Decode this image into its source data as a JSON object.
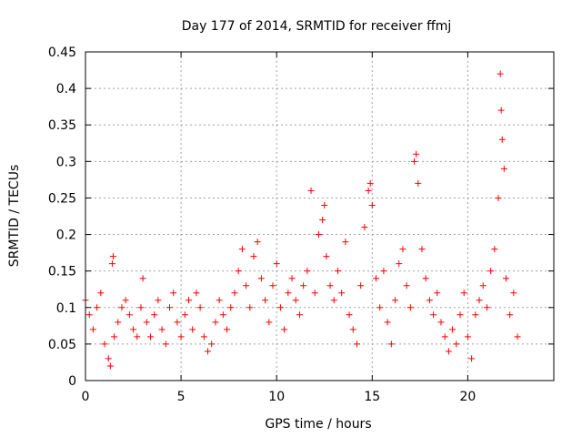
{
  "chart_data": {
    "type": "scatter",
    "title": "Day 177 of 2014, SRMTID for receiver ffmj",
    "xlabel": "GPS time / hours",
    "ylabel": "SRMTID / TECUs",
    "xlim": [
      0,
      24.5
    ],
    "ylim": [
      0,
      0.45
    ],
    "xticks": [
      0,
      5,
      10,
      15,
      20
    ],
    "xtick_labels": [
      "0",
      "5",
      "10",
      "15",
      "20"
    ],
    "yticks": [
      0,
      0.05,
      0.1,
      0.15,
      0.2,
      0.25,
      0.3,
      0.35,
      0.4,
      0.45
    ],
    "ytick_labels": [
      "0",
      "0.05",
      "0.1",
      "0.15",
      "0.2",
      "0.25",
      "0.3",
      "0.35",
      "0.4",
      "0.45"
    ],
    "grid": true,
    "marker": "+",
    "color": "#ff0000",
    "series": [
      {
        "name": "SRMTID",
        "points": [
          [
            0.0,
            0.11
          ],
          [
            0.2,
            0.09
          ],
          [
            0.4,
            0.07
          ],
          [
            0.6,
            0.1
          ],
          [
            0.8,
            0.12
          ],
          [
            1.0,
            0.05
          ],
          [
            1.2,
            0.03
          ],
          [
            1.3,
            0.02
          ],
          [
            1.4,
            0.16
          ],
          [
            1.45,
            0.17
          ],
          [
            1.5,
            0.06
          ],
          [
            1.7,
            0.08
          ],
          [
            1.9,
            0.1
          ],
          [
            2.1,
            0.11
          ],
          [
            2.3,
            0.09
          ],
          [
            2.5,
            0.07
          ],
          [
            2.7,
            0.06
          ],
          [
            2.9,
            0.1
          ],
          [
            3.0,
            0.14
          ],
          [
            3.2,
            0.08
          ],
          [
            3.4,
            0.06
          ],
          [
            3.6,
            0.09
          ],
          [
            3.8,
            0.11
          ],
          [
            4.0,
            0.07
          ],
          [
            4.2,
            0.05
          ],
          [
            4.4,
            0.1
          ],
          [
            4.6,
            0.12
          ],
          [
            4.8,
            0.08
          ],
          [
            5.0,
            0.06
          ],
          [
            5.2,
            0.09
          ],
          [
            5.4,
            0.11
          ],
          [
            5.6,
            0.07
          ],
          [
            5.8,
            0.12
          ],
          [
            6.0,
            0.1
          ],
          [
            6.2,
            0.06
          ],
          [
            6.4,
            0.04
          ],
          [
            6.6,
            0.05
          ],
          [
            6.8,
            0.08
          ],
          [
            7.0,
            0.11
          ],
          [
            7.2,
            0.09
          ],
          [
            7.4,
            0.07
          ],
          [
            7.6,
            0.1
          ],
          [
            7.8,
            0.12
          ],
          [
            8.0,
            0.15
          ],
          [
            8.2,
            0.18
          ],
          [
            8.4,
            0.13
          ],
          [
            8.6,
            0.1
          ],
          [
            8.8,
            0.17
          ],
          [
            9.0,
            0.19
          ],
          [
            9.2,
            0.14
          ],
          [
            9.4,
            0.11
          ],
          [
            9.6,
            0.08
          ],
          [
            9.8,
            0.13
          ],
          [
            10.0,
            0.16
          ],
          [
            10.2,
            0.1
          ],
          [
            10.4,
            0.07
          ],
          [
            10.6,
            0.12
          ],
          [
            10.8,
            0.14
          ],
          [
            11.0,
            0.11
          ],
          [
            11.2,
            0.09
          ],
          [
            11.4,
            0.13
          ],
          [
            11.6,
            0.15
          ],
          [
            11.8,
            0.26
          ],
          [
            12.0,
            0.12
          ],
          [
            12.2,
            0.2
          ],
          [
            12.4,
            0.22
          ],
          [
            12.5,
            0.24
          ],
          [
            12.6,
            0.17
          ],
          [
            12.8,
            0.13
          ],
          [
            13.0,
            0.11
          ],
          [
            13.2,
            0.15
          ],
          [
            13.4,
            0.12
          ],
          [
            13.6,
            0.19
          ],
          [
            13.8,
            0.09
          ],
          [
            14.0,
            0.07
          ],
          [
            14.2,
            0.05
          ],
          [
            14.4,
            0.13
          ],
          [
            14.6,
            0.21
          ],
          [
            14.8,
            0.26
          ],
          [
            14.9,
            0.27
          ],
          [
            15.0,
            0.24
          ],
          [
            15.2,
            0.14
          ],
          [
            15.4,
            0.1
          ],
          [
            15.6,
            0.15
          ],
          [
            15.8,
            0.08
          ],
          [
            16.0,
            0.05
          ],
          [
            16.2,
            0.11
          ],
          [
            16.4,
            0.16
          ],
          [
            16.6,
            0.18
          ],
          [
            16.8,
            0.13
          ],
          [
            17.0,
            0.1
          ],
          [
            17.2,
            0.3
          ],
          [
            17.3,
            0.31
          ],
          [
            17.4,
            0.27
          ],
          [
            17.6,
            0.18
          ],
          [
            17.8,
            0.14
          ],
          [
            18.0,
            0.11
          ],
          [
            18.2,
            0.09
          ],
          [
            18.4,
            0.12
          ],
          [
            18.6,
            0.08
          ],
          [
            18.8,
            0.06
          ],
          [
            19.0,
            0.04
          ],
          [
            19.2,
            0.07
          ],
          [
            19.4,
            0.05
          ],
          [
            19.6,
            0.09
          ],
          [
            19.8,
            0.12
          ],
          [
            20.0,
            0.06
          ],
          [
            20.2,
            0.03
          ],
          [
            20.4,
            0.09
          ],
          [
            20.6,
            0.11
          ],
          [
            20.8,
            0.13
          ],
          [
            21.0,
            0.1
          ],
          [
            21.2,
            0.15
          ],
          [
            21.4,
            0.18
          ],
          [
            21.6,
            0.25
          ],
          [
            21.7,
            0.42
          ],
          [
            21.75,
            0.37
          ],
          [
            21.8,
            0.33
          ],
          [
            21.9,
            0.29
          ],
          [
            22.0,
            0.14
          ],
          [
            22.2,
            0.09
          ],
          [
            22.4,
            0.12
          ],
          [
            22.6,
            0.06
          ]
        ]
      }
    ]
  }
}
